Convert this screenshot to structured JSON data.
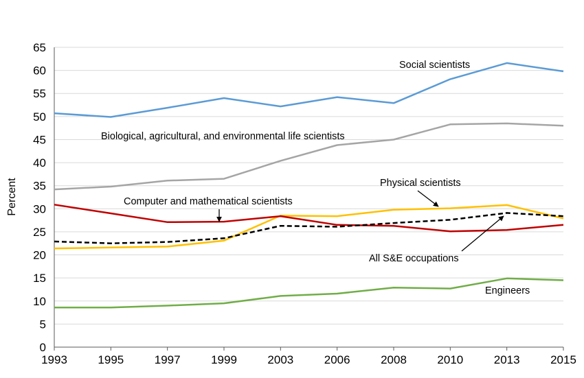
{
  "chart_data": {
    "type": "line",
    "title": "",
    "xlabel": "",
    "ylabel": "Percent",
    "ylim": [
      0,
      65
    ],
    "yticks": [
      0,
      5,
      10,
      15,
      20,
      25,
      30,
      35,
      40,
      45,
      50,
      55,
      60,
      65
    ],
    "categories": [
      "1993",
      "1995",
      "1997",
      "1999",
      "2003",
      "2006",
      "2008",
      "2010",
      "2013",
      "2015"
    ],
    "grid": true,
    "legend": "none",
    "series": [
      {
        "name": "Social scientists",
        "color": "#5b9bd5",
        "dashed": false,
        "values": [
          50.7,
          49.9,
          51.9,
          54.0,
          52.2,
          54.2,
          52.9,
          58.1,
          61.6,
          59.8
        ]
      },
      {
        "name": "Biological, agricultural, and environmental life scientists",
        "color": "#a5a5a5",
        "dashed": false,
        "values": [
          34.2,
          34.8,
          36.1,
          36.5,
          40.4,
          43.8,
          45.0,
          48.3,
          48.5,
          48.0
        ]
      },
      {
        "name": "Physical scientists",
        "color": "#ffc000",
        "dashed": false,
        "values": [
          21.4,
          21.6,
          21.8,
          23.1,
          28.5,
          28.4,
          29.8,
          30.1,
          30.8,
          27.9
        ]
      },
      {
        "name": "Computer and mathematical scientists",
        "color": "#c00000",
        "dashed": false,
        "values": [
          30.9,
          29.0,
          27.1,
          27.2,
          28.4,
          26.5,
          26.3,
          25.1,
          25.4,
          26.5
        ]
      },
      {
        "name": "All S&E occupations",
        "color": "#000000",
        "dashed": true,
        "values": [
          22.9,
          22.5,
          22.8,
          23.6,
          26.3,
          26.1,
          26.9,
          27.6,
          29.1,
          28.4
        ]
      },
      {
        "name": "Engineers",
        "color": "#70ad47",
        "dashed": false,
        "values": [
          8.6,
          8.6,
          9.0,
          9.5,
          11.1,
          11.6,
          12.9,
          12.7,
          14.9,
          14.5
        ]
      }
    ],
    "annotations": [
      {
        "text": "Social scientists",
        "series": 0
      },
      {
        "text": "Biological, agricultural, and environmental life scientists",
        "series": 1
      },
      {
        "text": "Physical scientists",
        "series": 2
      },
      {
        "text": "Computer and mathematical scientists",
        "series": 3
      },
      {
        "text": "All S&E occupations",
        "series": 4
      },
      {
        "text": "Engineers",
        "series": 5
      }
    ]
  }
}
